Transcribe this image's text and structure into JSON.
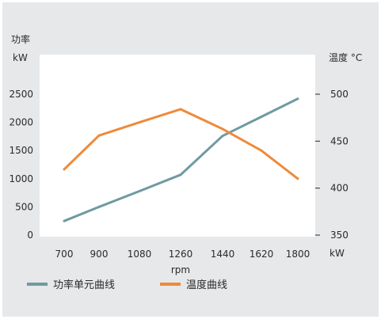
{
  "chart_data": {
    "type": "line",
    "categories": [
      "700",
      "900",
      "1080",
      "1260",
      "1440",
      "1620",
      "1800"
    ],
    "xlabel": "rpm",
    "y_left": {
      "title": "功率",
      "unit": "kW",
      "ticks": [
        0,
        500,
        1000,
        1500,
        2000,
        2500
      ],
      "range": [
        0,
        2500
      ]
    },
    "y_right": {
      "title": "温度 °C",
      "unit": "kW",
      "ticks": [
        350,
        400,
        450,
        500
      ],
      "range": [
        350,
        507
      ]
    },
    "series": [
      {
        "name": "功率单元曲线",
        "axis": "left",
        "color": "#6f9aa1",
        "values": [
          250,
          500,
          780,
          1070,
          1760,
          2100,
          2420
        ]
      },
      {
        "name": "温度曲线",
        "axis": "right",
        "color": "#ee8a3b",
        "values": [
          420,
          456,
          470,
          484,
          463,
          440,
          410
        ]
      }
    ],
    "grid": false,
    "legend_position": "bottom-left"
  }
}
